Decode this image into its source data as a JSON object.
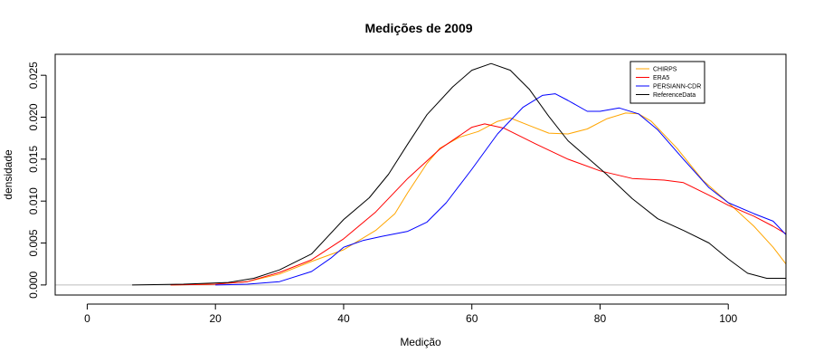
{
  "chart_data": {
    "type": "line",
    "title": "Medições de 2009",
    "xlabel": "Medição",
    "ylabel": "densidade",
    "xlim": [
      -5,
      109
    ],
    "ylim": [
      -0.0012,
      0.0275
    ],
    "x_ticks": [
      0,
      20,
      40,
      60,
      80,
      100
    ],
    "x_tick_labels": [
      "0",
      "20",
      "40",
      "60",
      "80",
      "100"
    ],
    "y_ticks": [
      0.0,
      0.005,
      0.01,
      0.015,
      0.02,
      0.025
    ],
    "y_tick_labels": [
      "0.000",
      "0.005",
      "0.010",
      "0.015",
      "0.020",
      "0.025"
    ],
    "baseline": 0,
    "baseline_color": "#bebebe",
    "legend_position": "top-right",
    "series": [
      {
        "name": "CHIRPS",
        "color": "#ffa500",
        "points": [
          [
            13,
            0
          ],
          [
            20,
            0.0001
          ],
          [
            25,
            0.0004
          ],
          [
            30,
            0.0013
          ],
          [
            35,
            0.0028
          ],
          [
            40,
            0.0042
          ],
          [
            45,
            0.0065
          ],
          [
            48,
            0.0085
          ],
          [
            50,
            0.011
          ],
          [
            53,
            0.0145
          ],
          [
            55,
            0.0163
          ],
          [
            58,
            0.0176
          ],
          [
            61,
            0.0183
          ],
          [
            64,
            0.0195
          ],
          [
            66,
            0.0199
          ],
          [
            69,
            0.019
          ],
          [
            72,
            0.0181
          ],
          [
            75,
            0.018
          ],
          [
            78,
            0.0186
          ],
          [
            81,
            0.0198
          ],
          [
            84,
            0.0205
          ],
          [
            86,
            0.0204
          ],
          [
            88,
            0.0195
          ],
          [
            92,
            0.0163
          ],
          [
            96,
            0.0125
          ],
          [
            100,
            0.0098
          ],
          [
            104,
            0.007
          ],
          [
            107,
            0.0045
          ],
          [
            109,
            0.0025
          ]
        ]
      },
      {
        "name": "ERA5",
        "color": "#ff0000",
        "points": [
          [
            13,
            0
          ],
          [
            20,
            0.0001
          ],
          [
            25,
            0.0004
          ],
          [
            30,
            0.0015
          ],
          [
            35,
            0.003
          ],
          [
            40,
            0.0055
          ],
          [
            45,
            0.0087
          ],
          [
            50,
            0.0127
          ],
          [
            55,
            0.0162
          ],
          [
            60,
            0.0188
          ],
          [
            62,
            0.0192
          ],
          [
            65,
            0.0187
          ],
          [
            70,
            0.0168
          ],
          [
            75,
            0.015
          ],
          [
            80,
            0.0136
          ],
          [
            85,
            0.0127
          ],
          [
            90,
            0.0125
          ],
          [
            93,
            0.0122
          ],
          [
            97,
            0.0107
          ],
          [
            100,
            0.0095
          ],
          [
            104,
            0.0082
          ],
          [
            107,
            0.007
          ],
          [
            109,
            0.0061
          ]
        ]
      },
      {
        "name": "PERSIANN-CDR",
        "color": "#0000ff",
        "points": [
          [
            20,
            0
          ],
          [
            25,
            0.0001
          ],
          [
            30,
            0.0004
          ],
          [
            35,
            0.0016
          ],
          [
            38,
            0.0032
          ],
          [
            40,
            0.0045
          ],
          [
            43,
            0.0053
          ],
          [
            46,
            0.0058
          ],
          [
            50,
            0.0064
          ],
          [
            53,
            0.0075
          ],
          [
            56,
            0.0098
          ],
          [
            60,
            0.0138
          ],
          [
            64,
            0.018
          ],
          [
            68,
            0.0212
          ],
          [
            71,
            0.0226
          ],
          [
            73,
            0.0228
          ],
          [
            75,
            0.022
          ],
          [
            78,
            0.0207
          ],
          [
            80,
            0.0207
          ],
          [
            83,
            0.0211
          ],
          [
            86,
            0.0204
          ],
          [
            89,
            0.0185
          ],
          [
            93,
            0.015
          ],
          [
            97,
            0.0116
          ],
          [
            100,
            0.0098
          ],
          [
            104,
            0.0085
          ],
          [
            107,
            0.0076
          ],
          [
            109,
            0.006
          ]
        ]
      },
      {
        "name": "ReferenceData",
        "color": "#000000",
        "points": [
          [
            7,
            0
          ],
          [
            15,
            0.0001
          ],
          [
            22,
            0.0003
          ],
          [
            26,
            0.0008
          ],
          [
            30,
            0.0018
          ],
          [
            35,
            0.0037
          ],
          [
            40,
            0.0078
          ],
          [
            44,
            0.0104
          ],
          [
            47,
            0.0132
          ],
          [
            50,
            0.0168
          ],
          [
            53,
            0.0203
          ],
          [
            57,
            0.0236
          ],
          [
            60,
            0.0256
          ],
          [
            63,
            0.0264
          ],
          [
            66,
            0.0256
          ],
          [
            69,
            0.0233
          ],
          [
            72,
            0.0201
          ],
          [
            75,
            0.0172
          ],
          [
            78,
            0.0152
          ],
          [
            81,
            0.0132
          ],
          [
            85,
            0.0103
          ],
          [
            89,
            0.0079
          ],
          [
            93,
            0.0065
          ],
          [
            97,
            0.005
          ],
          [
            100,
            0.0031
          ],
          [
            103,
            0.0014
          ],
          [
            106,
            0.0008
          ],
          [
            109,
            0.0008
          ]
        ]
      }
    ]
  }
}
